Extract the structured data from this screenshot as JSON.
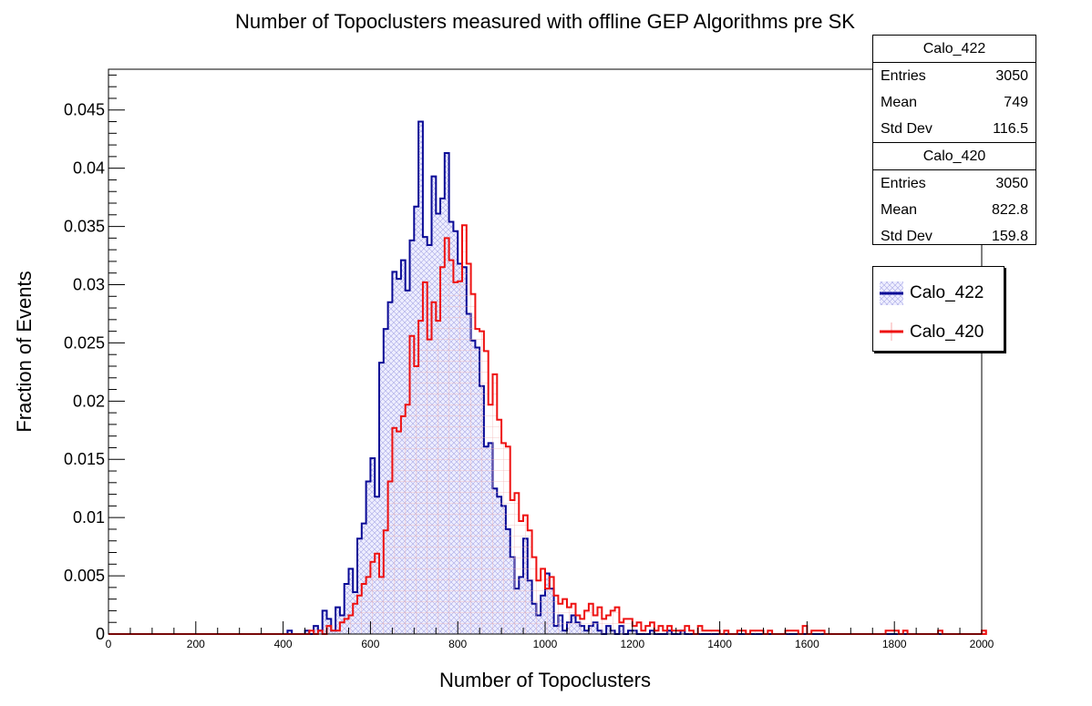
{
  "chart_data": {
    "type": "bar",
    "title": "Number of Topoclusters measured with offline GEP Algorithms pre SK",
    "xlabel": "Number of Topoclusters",
    "ylabel": "Fraction of Events",
    "xlim": [
      0,
      2000
    ],
    "ylim": [
      0,
      0.0485
    ],
    "x_ticks": [
      0,
      200,
      400,
      600,
      800,
      1000,
      1200,
      1400,
      1600,
      1800,
      2000
    ],
    "y_ticks": [
      0,
      0.005,
      0.01,
      0.015,
      0.02,
      0.025,
      0.03,
      0.035,
      0.04,
      0.045
    ],
    "y_tick_labels": [
      "0",
      "0.005",
      "0.01",
      "0.015",
      "0.02",
      "0.025",
      "0.03",
      "0.035",
      "0.04",
      "0.045"
    ],
    "bin_width": 10,
    "series": [
      {
        "name": "Calo_422",
        "color": "#0a0a96",
        "fill": "hatch-blue",
        "start": 410,
        "values": [
          0.0003,
          0,
          0,
          0,
          0.0003,
          0,
          0.0007,
          0.0003,
          0.002,
          0.0013,
          0.0003,
          0.0023,
          0.0016,
          0.0043,
          0.0056,
          0.0036,
          0.0082,
          0.0095,
          0.0131,
          0.0151,
          0.0118,
          0.0233,
          0.0262,
          0.0285,
          0.0311,
          0.0305,
          0.0321,
          0.0295,
          0.0338,
          0.0367,
          0.044,
          0.0341,
          0.0334,
          0.0393,
          0.0361,
          0.0374,
          0.0413,
          0.0354,
          0.0346,
          0.0318,
          0.0315,
          0.0275,
          0.0252,
          0.0246,
          0.0213,
          0.0161,
          0.0164,
          0.0125,
          0.0118,
          0.011,
          0.009,
          0.0066,
          0.0039,
          0.0049,
          0.0082,
          0.0046,
          0.0026,
          0.0016,
          0.0033,
          0.0052,
          0.0039,
          0.0007,
          0.0016,
          0.0003,
          0.001,
          0.0016,
          0.001,
          0.0007,
          0.0003,
          0.0007,
          0.001,
          0.0003,
          0,
          0.0007,
          0.0003,
          0,
          0.0007,
          0,
          0.0003,
          0.0003,
          0,
          0,
          0,
          0.0003,
          0,
          0,
          0,
          0.0003,
          0,
          0,
          0.0003
        ]
      },
      {
        "name": "Calo_420",
        "color": "#ee1111",
        "fill": "hatch-red",
        "start": 460,
        "values": [
          0.0003,
          0,
          0.0003,
          0,
          0.0007,
          0.0003,
          0.0003,
          0.001,
          0.0013,
          0.0016,
          0.0026,
          0.0033,
          0.0043,
          0.0049,
          0.0062,
          0.0069,
          0.0049,
          0.0089,
          0.0131,
          0.0177,
          0.0174,
          0.0187,
          0.0197,
          0.0256,
          0.023,
          0.0269,
          0.0302,
          0.0253,
          0.0285,
          0.0269,
          0.0315,
          0.034,
          0.0321,
          0.0302,
          0.0303,
          0.0351,
          0.0318,
          0.0292,
          0.0262,
          0.026,
          0.0243,
          0.0197,
          0.0223,
          0.0184,
          0.0164,
          0.0161,
          0.0115,
          0.0121,
          0.0097,
          0.0102,
          0.0089,
          0.0066,
          0.0046,
          0.0056,
          0.0039,
          0.0049,
          0.0033,
          0.0026,
          0.003,
          0.0023,
          0.0026,
          0.0016,
          0.0013,
          0.002,
          0.0026,
          0.0016,
          0.0023,
          0.0013,
          0.0016,
          0.002,
          0.0023,
          0.001,
          0.0013,
          0.0013,
          0.0007,
          0.001,
          0.0003,
          0.0007,
          0.001,
          0.0003,
          0.0007,
          0.0003,
          0.0007,
          0.0003,
          0.0003,
          0.0003,
          0.0007,
          0.0003,
          0,
          0.0007,
          0.0003,
          0.0003,
          0.0003,
          0.0003,
          0,
          0.0003,
          0,
          0,
          0.0003,
          0.0003,
          0,
          0.0003,
          0.0003,
          0.0003,
          0,
          0.0003,
          0,
          0,
          0,
          0.0003,
          0.0003,
          0.0003,
          0,
          0.0007,
          0,
          0.0003,
          0.0003,
          0.0003,
          0,
          0,
          0,
          0,
          0,
          0,
          0,
          0,
          0,
          0,
          0,
          0,
          0,
          0,
          0.0003,
          0.0003,
          0.0003,
          0,
          0.0003,
          0,
          0,
          0,
          0,
          0,
          0,
          0,
          0.0003,
          0,
          0,
          0,
          0,
          0,
          0,
          0,
          0,
          0,
          0.0003
        ]
      }
    ],
    "stats": [
      {
        "name": "Calo_422",
        "entries_label": "Entries",
        "entries": "3050",
        "mean_label": "Mean",
        "mean": "749",
        "std_label": "Std Dev",
        "std": "116.5"
      },
      {
        "name": "Calo_420",
        "entries_label": "Entries",
        "entries": "3050",
        "mean_label": "Mean",
        "mean": "822.8",
        "std_label": "Std Dev",
        "std": "159.8"
      }
    ],
    "legend": [
      "Calo_422",
      "Calo_420"
    ],
    "legend_position": "top-right"
  }
}
